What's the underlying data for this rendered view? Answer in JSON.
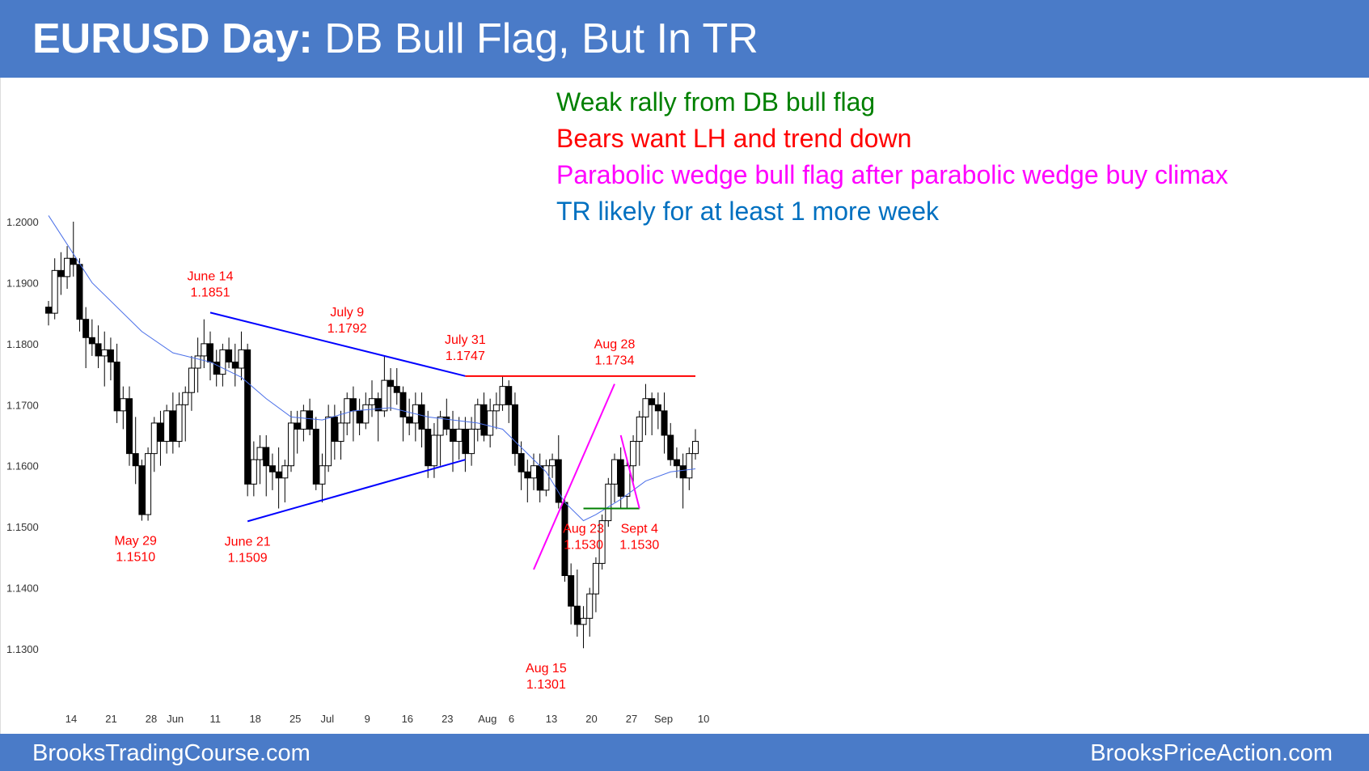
{
  "header": {
    "title_bold": "EURUSD Day:",
    "title_rest": "DB Bull Flag, But In TR"
  },
  "footer": {
    "left": "BrooksTradingCourse.com",
    "right": "BrooksPriceAction.com"
  },
  "notes": [
    {
      "text": "Weak rally from DB bull flag",
      "color": "#008000"
    },
    {
      "text": "Bears want LH and trend down",
      "color": "#ff0000"
    },
    {
      "text": "Parabolic wedge bull flag after parabolic wedge buy climax",
      "color": "#ff00ff"
    },
    {
      "text": "TR likely for at least 1 more week",
      "color": "#0070c0"
    }
  ],
  "chart_data": {
    "type": "candlestick",
    "symbol": "EURUSD",
    "timeframe": "Day",
    "ylim": [
      1.123,
      1.209
    ],
    "y_ticks": [
      "1.2000",
      "1.1900",
      "1.1800",
      "1.1700",
      "1.1600",
      "1.1500",
      "1.1400",
      "1.1300"
    ],
    "x_ticks": [
      "14",
      "21",
      "28",
      "Jun",
      "11",
      "18",
      "25",
      "Jul",
      "9",
      "16",
      "23",
      "Aug",
      "6",
      "13",
      "20",
      "27",
      "Sep",
      "10"
    ],
    "x_tick_index": [
      0,
      5,
      10,
      13,
      18,
      23,
      28,
      32,
      37,
      42,
      47,
      52,
      55,
      60,
      65,
      70,
      74,
      79
    ],
    "candles": [
      [
        1.186,
        1.187,
        1.183,
        1.185
      ],
      [
        1.185,
        1.194,
        1.184,
        1.192
      ],
      [
        1.192,
        1.195,
        1.188,
        1.191
      ],
      [
        1.191,
        1.196,
        1.189,
        1.194
      ],
      [
        1.194,
        1.2,
        1.191,
        1.193
      ],
      [
        1.193,
        1.194,
        1.182,
        1.184
      ],
      [
        1.184,
        1.186,
        1.176,
        1.181
      ],
      [
        1.181,
        1.184,
        1.178,
        1.18
      ],
      [
        1.18,
        1.183,
        1.176,
        1.178
      ],
      [
        1.178,
        1.182,
        1.173,
        1.179
      ],
      [
        1.179,
        1.181,
        1.174,
        1.177
      ],
      [
        1.177,
        1.18,
        1.167,
        1.169
      ],
      [
        1.169,
        1.173,
        1.166,
        1.171
      ],
      [
        1.171,
        1.173,
        1.16,
        1.162
      ],
      [
        1.162,
        1.168,
        1.157,
        1.16
      ],
      [
        1.16,
        1.161,
        1.151,
        1.152
      ],
      [
        1.152,
        1.163,
        1.151,
        1.162
      ],
      [
        1.162,
        1.168,
        1.159,
        1.167
      ],
      [
        1.167,
        1.169,
        1.16,
        1.164
      ],
      [
        1.164,
        1.17,
        1.162,
        1.169
      ],
      [
        1.169,
        1.172,
        1.162,
        1.164
      ],
      [
        1.164,
        1.172,
        1.163,
        1.17
      ],
      [
        1.17,
        1.173,
        1.164,
        1.172
      ],
      [
        1.172,
        1.178,
        1.169,
        1.176
      ],
      [
        1.176,
        1.181,
        1.172,
        1.178
      ],
      [
        1.178,
        1.184,
        1.176,
        1.18
      ],
      [
        1.18,
        1.182,
        1.174,
        1.177
      ],
      [
        1.177,
        1.179,
        1.173,
        1.175
      ],
      [
        1.175,
        1.18,
        1.173,
        1.179
      ],
      [
        1.179,
        1.181,
        1.176,
        1.177
      ],
      [
        1.177,
        1.18,
        1.173,
        1.176
      ],
      [
        1.176,
        1.182,
        1.174,
        1.179
      ],
      [
        1.179,
        1.18,
        1.155,
        1.157
      ],
      [
        1.157,
        1.164,
        1.155,
        1.161
      ],
      [
        1.161,
        1.165,
        1.157,
        1.163
      ],
      [
        1.163,
        1.165,
        1.155,
        1.16
      ],
      [
        1.16,
        1.162,
        1.156,
        1.159
      ],
      [
        1.159,
        1.163,
        1.153,
        1.158
      ],
      [
        1.158,
        1.161,
        1.154,
        1.16
      ],
      [
        1.16,
        1.169,
        1.159,
        1.167
      ],
      [
        1.167,
        1.169,
        1.162,
        1.166
      ],
      [
        1.166,
        1.17,
        1.164,
        1.169
      ],
      [
        1.169,
        1.171,
        1.165,
        1.166
      ],
      [
        1.166,
        1.168,
        1.156,
        1.157
      ],
      [
        1.157,
        1.162,
        1.154,
        1.16
      ],
      [
        1.16,
        1.17,
        1.159,
        1.168
      ],
      [
        1.168,
        1.17,
        1.161,
        1.164
      ],
      [
        1.164,
        1.169,
        1.161,
        1.167
      ],
      [
        1.167,
        1.172,
        1.165,
        1.171
      ],
      [
        1.171,
        1.173,
        1.164,
        1.169
      ],
      [
        1.169,
        1.171,
        1.165,
        1.167
      ],
      [
        1.167,
        1.172,
        1.166,
        1.17
      ],
      [
        1.17,
        1.174,
        1.168,
        1.171
      ],
      [
        1.171,
        1.172,
        1.164,
        1.169
      ],
      [
        1.169,
        1.178,
        1.168,
        1.174
      ],
      [
        1.174,
        1.176,
        1.169,
        1.173
      ],
      [
        1.173,
        1.176,
        1.17,
        1.172
      ],
      [
        1.172,
        1.173,
        1.164,
        1.168
      ],
      [
        1.168,
        1.171,
        1.165,
        1.167
      ],
      [
        1.167,
        1.172,
        1.164,
        1.17
      ],
      [
        1.17,
        1.172,
        1.163,
        1.166
      ],
      [
        1.166,
        1.169,
        1.158,
        1.16
      ],
      [
        1.16,
        1.167,
        1.158,
        1.165
      ],
      [
        1.165,
        1.169,
        1.16,
        1.168
      ],
      [
        1.168,
        1.171,
        1.165,
        1.166
      ],
      [
        1.166,
        1.169,
        1.159,
        1.164
      ],
      [
        1.164,
        1.168,
        1.161,
        1.166
      ],
      [
        1.166,
        1.168,
        1.159,
        1.162
      ],
      [
        1.162,
        1.168,
        1.16,
        1.166
      ],
      [
        1.166,
        1.171,
        1.164,
        1.17
      ],
      [
        1.17,
        1.172,
        1.164,
        1.165
      ],
      [
        1.165,
        1.171,
        1.163,
        1.169
      ],
      [
        1.169,
        1.172,
        1.166,
        1.17
      ],
      [
        1.17,
        1.1747,
        1.169,
        1.173
      ],
      [
        1.173,
        1.174,
        1.167,
        1.17
      ],
      [
        1.17,
        1.172,
        1.16,
        1.162
      ],
      [
        1.162,
        1.164,
        1.156,
        1.159
      ],
      [
        1.159,
        1.161,
        1.154,
        1.158
      ],
      [
        1.158,
        1.162,
        1.156,
        1.16
      ],
      [
        1.16,
        1.162,
        1.154,
        1.156
      ],
      [
        1.156,
        1.161,
        1.155,
        1.16
      ],
      [
        1.16,
        1.162,
        1.158,
        1.161
      ],
      [
        1.161,
        1.165,
        1.153,
        1.154
      ],
      [
        1.154,
        1.155,
        1.141,
        1.142
      ],
      [
        1.142,
        1.144,
        1.134,
        1.137
      ],
      [
        1.137,
        1.143,
        1.132,
        1.134
      ],
      [
        1.134,
        1.137,
        1.1301,
        1.135
      ],
      [
        1.135,
        1.14,
        1.132,
        1.139
      ],
      [
        1.139,
        1.145,
        1.136,
        1.144
      ],
      [
        1.144,
        1.152,
        1.143,
        1.151
      ],
      [
        1.151,
        1.158,
        1.15,
        1.157
      ],
      [
        1.157,
        1.162,
        1.154,
        1.161
      ],
      [
        1.161,
        1.163,
        1.153,
        1.155
      ],
      [
        1.155,
        1.161,
        1.153,
        1.16
      ],
      [
        1.16,
        1.165,
        1.157,
        1.164
      ],
      [
        1.164,
        1.169,
        1.16,
        1.168
      ],
      [
        1.168,
        1.1734,
        1.165,
        1.171
      ],
      [
        1.171,
        1.172,
        1.165,
        1.17
      ],
      [
        1.17,
        1.172,
        1.166,
        1.169
      ],
      [
        1.169,
        1.172,
        1.162,
        1.165
      ],
      [
        1.165,
        1.167,
        1.16,
        1.161
      ],
      [
        1.161,
        1.163,
        1.158,
        1.16
      ],
      [
        1.16,
        1.162,
        1.153,
        1.158
      ],
      [
        1.158,
        1.163,
        1.156,
        1.162
      ],
      [
        1.162,
        1.166,
        1.161,
        1.164
      ]
    ],
    "moving_average": [
      [
        1.201,
        0
      ],
      [
        1.19,
        7
      ],
      [
        1.182,
        15
      ],
      [
        1.1785,
        20
      ],
      [
        1.177,
        26
      ],
      [
        1.1745,
        32
      ],
      [
        1.171,
        36
      ],
      [
        1.168,
        40
      ],
      [
        1.1675,
        45
      ],
      [
        1.169,
        50
      ],
      [
        1.1695,
        56
      ],
      [
        1.168,
        62
      ],
      [
        1.167,
        70
      ],
      [
        1.166,
        74
      ],
      [
        1.162,
        78
      ],
      [
        1.159,
        81
      ],
      [
        1.154,
        84
      ],
      [
        1.151,
        87
      ],
      [
        1.152,
        90
      ],
      [
        1.1545,
        94
      ],
      [
        1.1575,
        98
      ],
      [
        1.159,
        102
      ],
      [
        1.1595,
        106
      ]
    ],
    "lines": [
      {
        "name": "triangle-upper",
        "color": "#0000ff",
        "from": [
          "June 14",
          1.1851
        ],
        "to": [
          "July 31",
          1.1747
        ]
      },
      {
        "name": "triangle-lower",
        "color": "#0000ff",
        "from": [
          "June 21",
          1.1509
        ],
        "to": [
          "July 31",
          1.161
        ]
      },
      {
        "name": "lh-resistance",
        "color": "#ff0000",
        "from": [
          "July 31",
          1.1747
        ],
        "to": [
          "Sep 10",
          1.1747
        ]
      },
      {
        "name": "db-support",
        "color": "#008000",
        "from": [
          "Aug 23",
          1.153
        ],
        "to": [
          "Sept 4",
          1.153
        ]
      },
      {
        "name": "wedge-rally",
        "color": "#ff00ff",
        "from": [
          "Aug 13",
          1.143
        ],
        "to": [
          "Aug 28",
          1.1734
        ]
      },
      {
        "name": "wedge-pullback",
        "color": "#ff00ff",
        "from": [
          "Aug 29",
          1.165
        ],
        "to": [
          "Sept 4",
          1.153
        ]
      }
    ],
    "annotations": [
      {
        "label": "June 14",
        "value": "1.1851",
        "color": "#ff0000"
      },
      {
        "label": "July 9",
        "value": "1.1792",
        "color": "#ff0000"
      },
      {
        "label": "July 31",
        "value": "1.1747",
        "color": "#ff0000"
      },
      {
        "label": "Aug 28",
        "value": "1.1734",
        "color": "#ff0000"
      },
      {
        "label": "May 29",
        "value": "1.1510",
        "color": "#ff0000"
      },
      {
        "label": "June 21",
        "value": "1.1509",
        "color": "#ff0000"
      },
      {
        "label": "Aug 23",
        "value": "1.1530",
        "color": "#ff0000"
      },
      {
        "label": "Sept 4",
        "value": "1.1530",
        "color": "#ff0000"
      },
      {
        "label": "Aug 15",
        "value": "1.1301",
        "color": "#ff0000"
      }
    ]
  }
}
